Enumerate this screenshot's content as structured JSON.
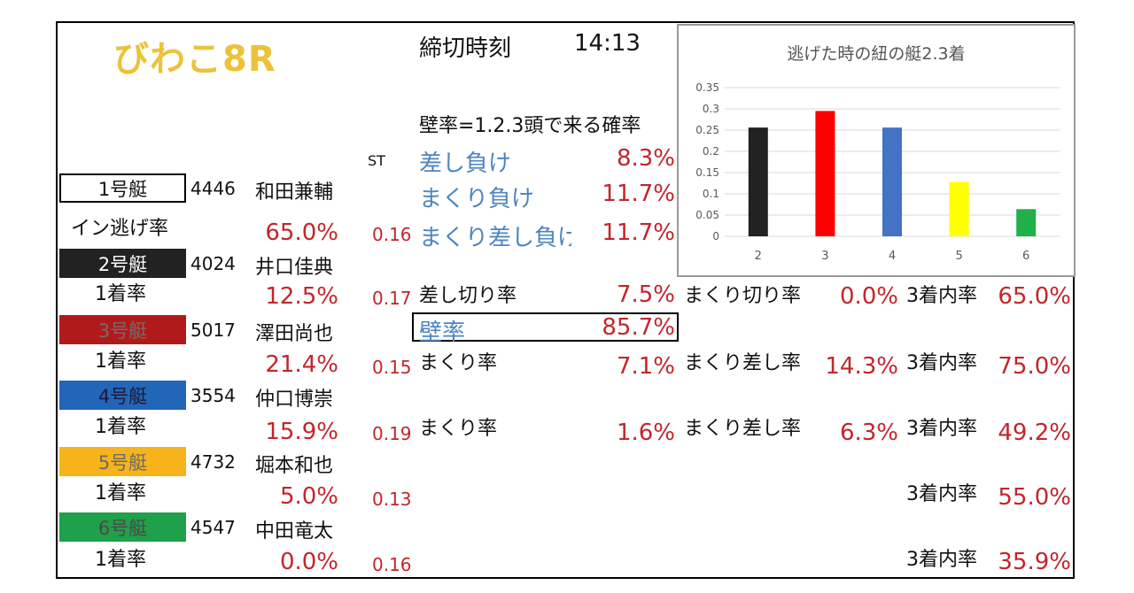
{
  "race": {
    "title": "びわこ8R",
    "deadline_label": "締切時刻",
    "deadline_time": "14:13"
  },
  "st_header": "ST",
  "boats": [
    {
      "label": "1号艇",
      "color": "#ffffff",
      "text_color": "#111111",
      "reg": "4446",
      "name": "和田兼輔",
      "rate_label": "イン逃げ率",
      "rate": "65.0%",
      "st": "0.16"
    },
    {
      "label": "2号艇",
      "color": "#222222",
      "text_color": "#ffffff",
      "reg": "4024",
      "name": "井口佳典",
      "rate_label": "1着率",
      "rate": "12.5%",
      "st": "0.17"
    },
    {
      "label": "3号艇",
      "color": "#b11a1a",
      "text_color": "#7a6a6a",
      "reg": "5017",
      "name": "澤田尚也",
      "rate_label": "1着率",
      "rate": "21.4%",
      "st": "0.15"
    },
    {
      "label": "4号艇",
      "color": "#2266b8",
      "text_color": "#1a1a3a",
      "reg": "3554",
      "name": "仲口博崇",
      "rate_label": "1着率",
      "rate": "15.9%",
      "st": "0.19"
    },
    {
      "label": "5号艇",
      "color": "#f6b41a",
      "text_color": "#6a6a6a",
      "reg": "4732",
      "name": "堀本和也",
      "rate_label": "1着率",
      "rate": "5.0%",
      "st": "0.13"
    },
    {
      "label": "6号艇",
      "color": "#1fa04a",
      "text_color": "#4a4a4a",
      "reg": "4547",
      "name": "中田竜太",
      "rate_label": "1着率",
      "rate": "0.0%",
      "st": "0.16"
    }
  ],
  "wall": {
    "heading": "壁率=1.2.3頭で来る確率",
    "items": [
      {
        "label": "差し負け",
        "value": "8.3%"
      },
      {
        "label": "まくり負け",
        "value": "11.7%"
      },
      {
        "label": "まくり差し負け",
        "value": "11.7%"
      }
    ],
    "total_label": "壁率",
    "total_value": "85.7%"
  },
  "stats": {
    "boat2": {
      "a_label": "差し切り率",
      "a_value": "7.5%",
      "b_label": "まくり切り率",
      "b_value": "0.0%",
      "c_label": "3着内率",
      "c_value": "65.0%"
    },
    "boat3": {
      "a_label": "まくり率",
      "a_value": "7.1%",
      "b_label": "まくり差し率",
      "b_value": "14.3%",
      "c_label": "3着内率",
      "c_value": "75.0%"
    },
    "boat4": {
      "a_label": "まくり率",
      "a_value": "1.6%",
      "b_label": "まくり差し率",
      "b_value": "6.3%",
      "c_label": "3着内率",
      "c_value": "49.2%"
    },
    "boat5": {
      "c_label": "3着内率",
      "c_value": "55.0%"
    },
    "boat6": {
      "c_label": "3着内率",
      "c_value": "35.9%"
    }
  },
  "chart_data": {
    "type": "bar",
    "title": "逃げた時の紐の艇2.3着",
    "categories": [
      "2",
      "3",
      "4",
      "5",
      "6"
    ],
    "values": [
      0.256,
      0.295,
      0.256,
      0.128,
      0.064
    ],
    "colors": [
      "#222222",
      "#ff0000",
      "#4472c4",
      "#ffff00",
      "#1fb04a"
    ],
    "ylim": [
      0,
      0.35
    ],
    "yticks": [
      "0",
      "0.05",
      "0.1",
      "0.15",
      "0.2",
      "0.25",
      "0.3",
      "0.35"
    ],
    "grid": true
  }
}
